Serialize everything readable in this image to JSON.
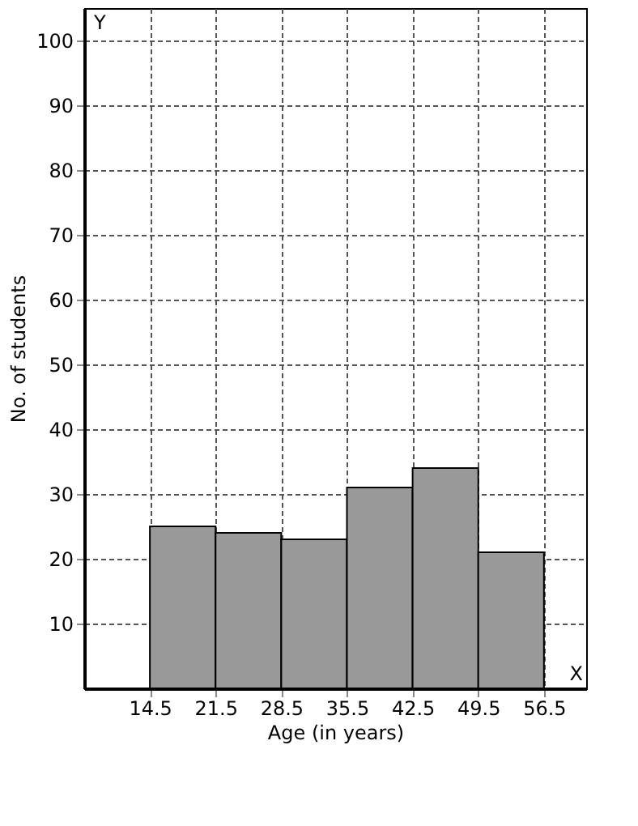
{
  "chart_data": {
    "type": "histogram",
    "xlabel": "Age (in years)",
    "ylabel": "No. of students",
    "bins": [
      14.5,
      21.5,
      28.5,
      35.5,
      42.5,
      49.5,
      56.5
    ],
    "values": [
      25,
      24,
      23,
      31,
      34,
      21
    ],
    "color": "#999999",
    "xlim": [
      7.5,
      61
    ],
    "ylim": [
      0,
      105
    ],
    "xticks": [
      14.5,
      21.5,
      28.5,
      35.5,
      42.5,
      49.5,
      56.5
    ],
    "yticks": [
      10,
      20,
      30,
      40,
      50,
      60,
      70,
      80,
      90,
      100
    ],
    "grid": true,
    "annotations": [
      "Y",
      "X"
    ]
  }
}
